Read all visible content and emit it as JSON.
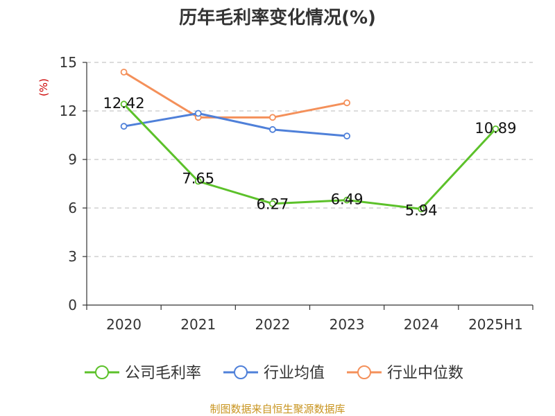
{
  "chart_data": {
    "type": "line",
    "title": "历年毛利率变化情况(%)",
    "ylabel": "(%)",
    "xlabel": "",
    "categories": [
      "2020",
      "2021",
      "2022",
      "2023",
      "2024",
      "2025H1"
    ],
    "ylim": [
      0,
      15
    ],
    "yticks": [
      0,
      3,
      6,
      9,
      12,
      15
    ],
    "grid": true,
    "legend_position": "bottom",
    "series": [
      {
        "name": "公司毛利率",
        "color": "#5cc12a",
        "values": [
          12.42,
          7.65,
          6.27,
          6.49,
          5.94,
          10.89
        ],
        "labels": [
          "12.42",
          "7.65",
          "6.27",
          "6.49",
          "5.94",
          "10.89"
        ]
      },
      {
        "name": "行业均值",
        "color": "#4f80d9",
        "values": [
          11.05,
          11.85,
          10.85,
          10.45,
          null,
          null
        ]
      },
      {
        "name": "行业中位数",
        "color": "#f4905a",
        "values": [
          14.4,
          11.6,
          11.6,
          12.5,
          null,
          null
        ]
      }
    ]
  },
  "source": "制图数据来自恒生聚源数据库"
}
